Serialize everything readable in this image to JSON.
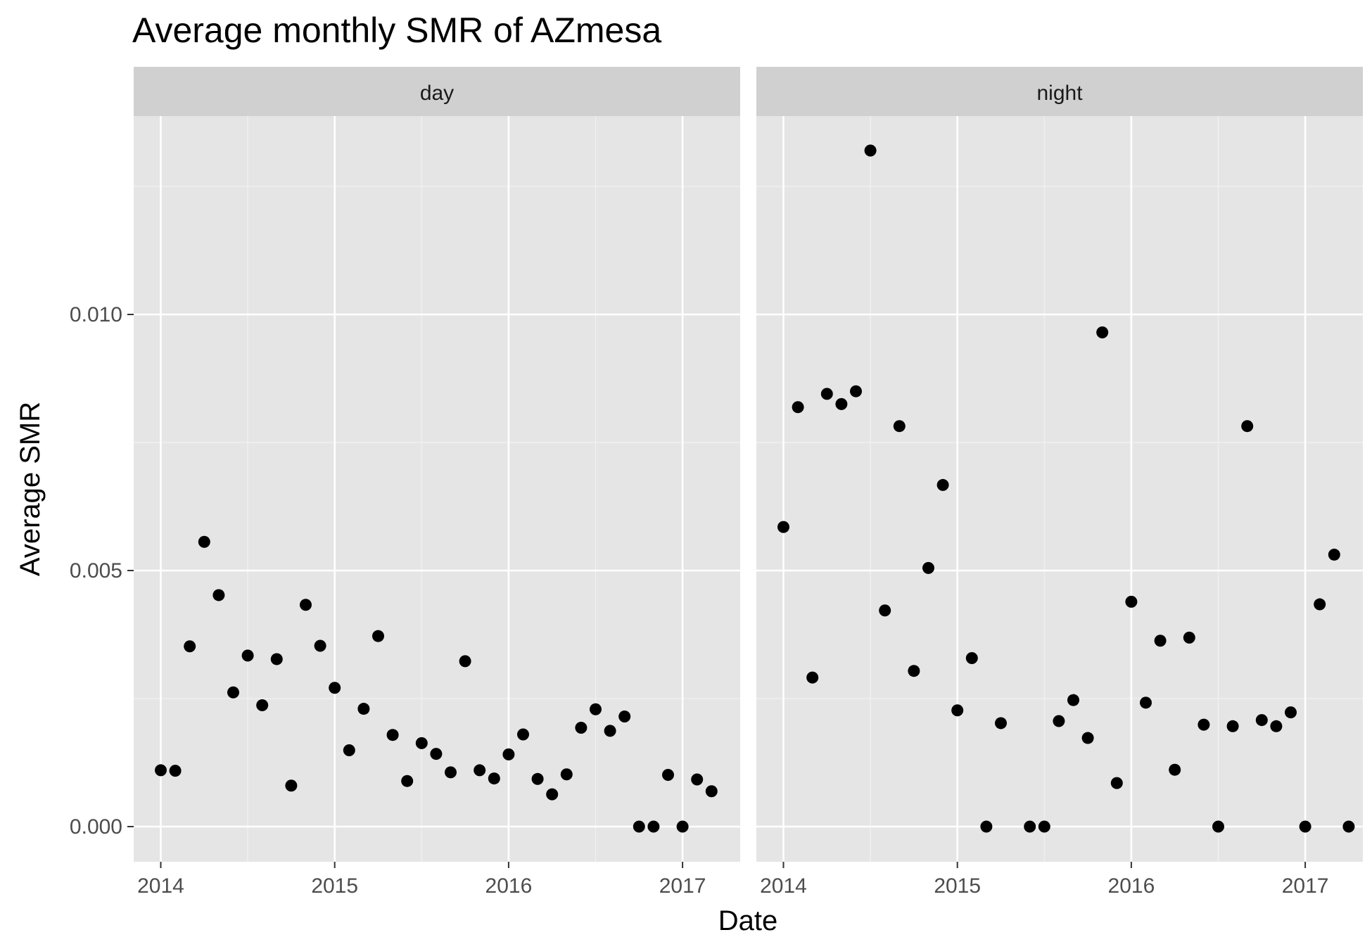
{
  "chart_data": {
    "type": "scatter",
    "title": "Average monthly SMR of AZmesa",
    "xlabel": "Date",
    "ylabel": "Average SMR",
    "ylim": [
      -0.00065,
      0.01395
    ],
    "x_ticks": [
      "2014",
      "2015",
      "2016",
      "2017"
    ],
    "y_ticks": [
      "0.000",
      "0.005",
      "0.010"
    ],
    "y_tick_values": [
      0.0,
      0.005,
      0.01
    ],
    "grid": true,
    "marker_color": "#000000",
    "panel_background": "#e5e5e5",
    "strip_background": "#d0d0d0",
    "facets": [
      {
        "name": "day",
        "points": [
          [
            "2014-01",
            0.0011
          ],
          [
            "2014-02",
            0.00109
          ],
          [
            "2014-03",
            0.00352
          ],
          [
            "2014-04",
            0.00556
          ],
          [
            "2014-05",
            0.00452
          ],
          [
            "2014-06",
            0.00262
          ],
          [
            "2014-07",
            0.00334
          ],
          [
            "2014-08",
            0.00237
          ],
          [
            "2014-09",
            0.00327
          ],
          [
            "2014-10",
            0.0008
          ],
          [
            "2014-11",
            0.00433
          ],
          [
            "2014-12",
            0.00353
          ],
          [
            "2015-01",
            0.00271
          ],
          [
            "2015-02",
            0.00149
          ],
          [
            "2015-03",
            0.0023
          ],
          [
            "2015-04",
            0.00372
          ],
          [
            "2015-05",
            0.00179
          ],
          [
            "2015-06",
            0.00089
          ],
          [
            "2015-07",
            0.00163
          ],
          [
            "2015-08",
            0.00142
          ],
          [
            "2015-09",
            0.00106
          ],
          [
            "2015-10",
            0.00323
          ],
          [
            "2015-11",
            0.0011
          ],
          [
            "2015-12",
            0.00094
          ],
          [
            "2016-01",
            0.00141
          ],
          [
            "2016-02",
            0.0018
          ],
          [
            "2016-03",
            0.00093
          ],
          [
            "2016-04",
            0.00063
          ],
          [
            "2016-05",
            0.00102
          ],
          [
            "2016-06",
            0.00193
          ],
          [
            "2016-07",
            0.00229
          ],
          [
            "2016-08",
            0.00187
          ],
          [
            "2016-09",
            0.00215
          ],
          [
            "2016-10",
            0.0
          ],
          [
            "2016-11",
            0.0
          ],
          [
            "2016-12",
            0.00101
          ],
          [
            "2017-01",
            0.0
          ],
          [
            "2017-02",
            0.00092
          ],
          [
            "2017-03",
            0.00069
          ]
        ]
      },
      {
        "name": "night",
        "points": [
          [
            "2014-01",
            0.00585
          ],
          [
            "2014-02",
            0.00819
          ],
          [
            "2014-03",
            0.00291
          ],
          [
            "2014-04",
            0.00845
          ],
          [
            "2014-05",
            0.00825
          ],
          [
            "2014-06",
            0.0085
          ],
          [
            "2014-07",
            0.0132
          ],
          [
            "2014-08",
            0.00422
          ],
          [
            "2014-09",
            0.00782
          ],
          [
            "2014-10",
            0.00304
          ],
          [
            "2014-11",
            0.00505
          ],
          [
            "2014-12",
            0.00667
          ],
          [
            "2015-01",
            0.00227
          ],
          [
            "2015-02",
            0.00329
          ],
          [
            "2015-03",
            0.0
          ],
          [
            "2015-04",
            0.00202
          ],
          [
            "2015-06",
            0.0
          ],
          [
            "2015-07",
            0.0
          ],
          [
            "2015-08",
            0.00206
          ],
          [
            "2015-09",
            0.00247
          ],
          [
            "2015-10",
            0.00173
          ],
          [
            "2015-11",
            0.00965
          ],
          [
            "2015-12",
            0.00085
          ],
          [
            "2016-01",
            0.00439
          ],
          [
            "2016-02",
            0.00242
          ],
          [
            "2016-03",
            0.00363
          ],
          [
            "2016-04",
            0.00111
          ],
          [
            "2016-05",
            0.00369
          ],
          [
            "2016-06",
            0.00199
          ],
          [
            "2016-07",
            0.0
          ],
          [
            "2016-08",
            0.00196
          ],
          [
            "2016-09",
            0.00782
          ],
          [
            "2016-10",
            0.00208
          ],
          [
            "2016-11",
            0.00196
          ],
          [
            "2016-12",
            0.00223
          ],
          [
            "2017-01",
            0.0
          ],
          [
            "2017-02",
            0.00434
          ],
          [
            "2017-03",
            0.00531
          ],
          [
            "2017-04",
            0.0
          ]
        ]
      }
    ]
  }
}
